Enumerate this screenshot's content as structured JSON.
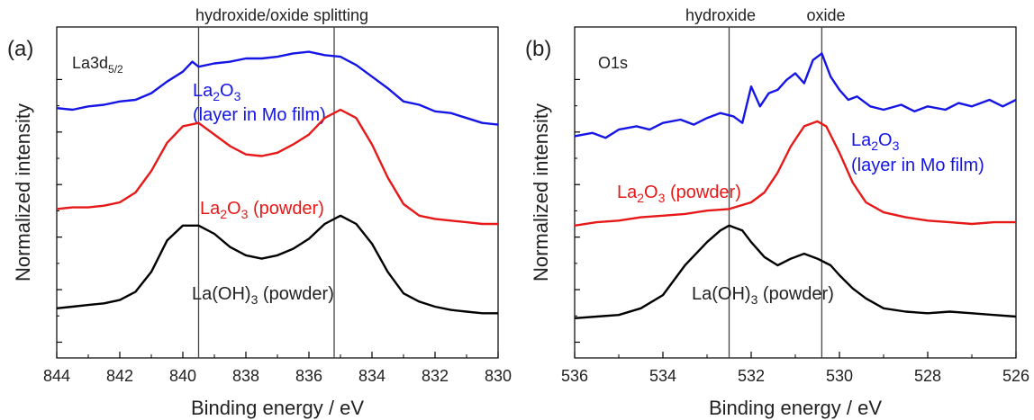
{
  "colors": {
    "blue": "#1515e6",
    "red": "#e61818",
    "black": "#000000",
    "axis": "#000000",
    "text": "#222222",
    "vline": "#444444"
  },
  "chart_data": [
    {
      "type": "line",
      "panel_label": "(a)",
      "core_level": "La3d",
      "core_level_sub": "5/2",
      "top_annotation": "hydroxide/oxide splitting",
      "xlabel": "Binding energy / eV",
      "ylabel": "Normalized intensity",
      "xlim": [
        844,
        830
      ],
      "x_reversed": true,
      "xticks": [
        "844",
        "842",
        "840",
        "838",
        "836",
        "834",
        "832",
        "830"
      ],
      "y_ticks_labeled": false,
      "ylim": [
        0,
        1
      ],
      "vlines": [
        839.5,
        835.2
      ],
      "series": [
        {
          "color": "#1515e6",
          "label_parts": [
            [
              "La",
              ""
            ],
            [
              "2",
              "sub"
            ],
            [
              "O",
              ""
            ],
            [
              "3",
              "sub"
            ]
          ],
          "label_line2": "(layer in Mo film)",
          "x": [
            844.0,
            843.5,
            843.0,
            842.5,
            842.0,
            841.5,
            841.0,
            840.5,
            840.0,
            839.7,
            839.5,
            839.0,
            838.5,
            838.0,
            837.5,
            837.0,
            836.5,
            836.0,
            835.5,
            835.0,
            834.5,
            834.0,
            833.5,
            833.0,
            832.5,
            832.0,
            831.5,
            831.0,
            830.5,
            830.0
          ],
          "y": [
            0.755,
            0.75,
            0.76,
            0.765,
            0.775,
            0.78,
            0.8,
            0.835,
            0.865,
            0.895,
            0.88,
            0.89,
            0.895,
            0.905,
            0.905,
            0.91,
            0.92,
            0.925,
            0.915,
            0.91,
            0.885,
            0.85,
            0.815,
            0.775,
            0.765,
            0.745,
            0.74,
            0.725,
            0.71,
            0.705
          ]
        },
        {
          "color": "#e61818",
          "label_parts": [
            [
              "La",
              ""
            ],
            [
              "2",
              "sub"
            ],
            [
              "O",
              ""
            ],
            [
              "3",
              "sub"
            ],
            [
              " (powder)",
              ""
            ]
          ],
          "x": [
            844.0,
            843.5,
            843.0,
            842.5,
            842.0,
            841.5,
            841.0,
            840.5,
            840.0,
            839.5,
            839.0,
            838.5,
            838.0,
            837.5,
            837.0,
            836.5,
            836.0,
            835.5,
            835.0,
            834.5,
            834.0,
            833.5,
            833.0,
            832.5,
            832.0,
            831.5,
            831.0,
            830.5,
            830.0
          ],
          "y": [
            0.45,
            0.455,
            0.455,
            0.46,
            0.47,
            0.5,
            0.565,
            0.65,
            0.7,
            0.71,
            0.675,
            0.64,
            0.615,
            0.61,
            0.62,
            0.645,
            0.675,
            0.725,
            0.75,
            0.725,
            0.645,
            0.545,
            0.465,
            0.43,
            0.42,
            0.415,
            0.41,
            0.405,
            0.405
          ]
        },
        {
          "color": "#000000",
          "label_parts": [
            [
              "La(OH)",
              ""
            ],
            [
              "3",
              "sub"
            ],
            [
              " (powder)",
              ""
            ]
          ],
          "x": [
            844.0,
            843.5,
            843.0,
            842.5,
            842.0,
            841.5,
            841.0,
            840.5,
            840.0,
            839.5,
            839.0,
            838.5,
            838.0,
            837.5,
            837.0,
            836.5,
            836.0,
            835.5,
            835.0,
            834.5,
            834.0,
            833.5,
            833.0,
            832.5,
            832.0,
            831.5,
            831.0,
            830.5,
            830.0
          ],
          "y": [
            0.15,
            0.155,
            0.16,
            0.165,
            0.175,
            0.2,
            0.26,
            0.355,
            0.4,
            0.4,
            0.375,
            0.335,
            0.31,
            0.3,
            0.31,
            0.33,
            0.36,
            0.405,
            0.43,
            0.405,
            0.345,
            0.26,
            0.195,
            0.17,
            0.155,
            0.145,
            0.14,
            0.135,
            0.135
          ]
        }
      ]
    },
    {
      "type": "line",
      "panel_label": "(b)",
      "core_level": "O1s",
      "core_level_sub": "",
      "top_annotations": [
        "hydroxide",
        "oxide"
      ],
      "xlabel": "Binding energy / eV",
      "ylabel": "Normalized intensity",
      "xlim": [
        536,
        526
      ],
      "x_reversed": true,
      "xticks": [
        "536",
        "534",
        "532",
        "530",
        "528",
        "526"
      ],
      "y_ticks_labeled": false,
      "ylim": [
        0,
        1
      ],
      "vlines": [
        532.5,
        530.4
      ],
      "series": [
        {
          "color": "#1515e6",
          "label_parts": [
            [
              "La",
              ""
            ],
            [
              "2",
              "sub"
            ],
            [
              "O",
              ""
            ],
            [
              "3",
              "sub"
            ]
          ],
          "label_line2": "(layer in Mo film)",
          "x": [
            536.0,
            535.6,
            535.3,
            535.0,
            534.6,
            534.3,
            534.0,
            533.6,
            533.3,
            533.0,
            532.7,
            532.4,
            532.2,
            532.0,
            531.8,
            531.6,
            531.4,
            531.2,
            531.0,
            530.8,
            530.6,
            530.4,
            530.2,
            530.0,
            529.8,
            529.6,
            529.3,
            529.0,
            528.6,
            528.3,
            528.0,
            527.6,
            527.3,
            527.0,
            526.6,
            526.3,
            526.0
          ],
          "y": [
            0.67,
            0.68,
            0.665,
            0.69,
            0.7,
            0.69,
            0.71,
            0.72,
            0.705,
            0.725,
            0.74,
            0.73,
            0.71,
            0.82,
            0.76,
            0.8,
            0.81,
            0.84,
            0.86,
            0.83,
            0.9,
            0.92,
            0.85,
            0.81,
            0.78,
            0.79,
            0.76,
            0.75,
            0.765,
            0.745,
            0.76,
            0.75,
            0.77,
            0.76,
            0.78,
            0.76,
            0.78
          ]
        },
        {
          "color": "#e61818",
          "label_parts": [
            [
              "La",
              ""
            ],
            [
              "2",
              "sub"
            ],
            [
              "O",
              ""
            ],
            [
              "3",
              "sub"
            ],
            [
              " (powder)",
              ""
            ]
          ],
          "x": [
            536.0,
            535.5,
            535.0,
            534.5,
            534.0,
            533.5,
            533.0,
            532.5,
            532.0,
            531.7,
            531.4,
            531.1,
            530.8,
            530.5,
            530.3,
            530.0,
            529.7,
            529.4,
            529.0,
            528.5,
            528.0,
            527.5,
            527.0,
            526.5,
            526.0
          ],
          "y": [
            0.4,
            0.41,
            0.415,
            0.425,
            0.43,
            0.435,
            0.445,
            0.45,
            0.47,
            0.5,
            0.56,
            0.64,
            0.7,
            0.715,
            0.7,
            0.62,
            0.53,
            0.47,
            0.44,
            0.425,
            0.415,
            0.41,
            0.405,
            0.41,
            0.41
          ]
        },
        {
          "color": "#000000",
          "label_parts": [
            [
              "La(OH)",
              ""
            ],
            [
              "3",
              "sub"
            ],
            [
              " (powder)",
              ""
            ]
          ],
          "x": [
            536.0,
            535.5,
            535.0,
            534.5,
            534.0,
            533.5,
            533.0,
            532.7,
            532.5,
            532.2,
            532.0,
            531.7,
            531.4,
            531.1,
            530.8,
            530.5,
            530.2,
            530.0,
            529.7,
            529.4,
            529.0,
            528.5,
            528.0,
            527.5,
            527.0,
            526.5,
            526.0
          ],
          "y": [
            0.12,
            0.125,
            0.13,
            0.15,
            0.19,
            0.28,
            0.35,
            0.385,
            0.4,
            0.385,
            0.35,
            0.305,
            0.28,
            0.3,
            0.315,
            0.3,
            0.28,
            0.25,
            0.21,
            0.18,
            0.15,
            0.14,
            0.135,
            0.14,
            0.135,
            0.13,
            0.125
          ]
        }
      ]
    }
  ]
}
